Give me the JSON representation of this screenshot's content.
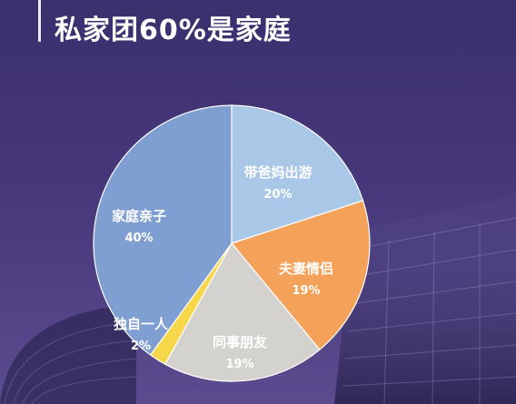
{
  "title": "私家团60%是家庭",
  "chart_data": {
    "type": "pie",
    "title": "私家团60%是家庭",
    "slices": [
      {
        "label": "带爸妈出游",
        "value": 20,
        "value_label": "20%",
        "color": "#a9c7e6"
      },
      {
        "label": "夫妻情侣",
        "value": 19,
        "value_label": "19%",
        "color": "#f4a25a"
      },
      {
        "label": "同事朋友",
        "value": 19,
        "value_label": "19%",
        "color": "#d4d2cf"
      },
      {
        "label": "独自一人",
        "value": 2,
        "value_label": "2%",
        "color": "#f6d74a"
      },
      {
        "label": "家庭亲子",
        "value": 40,
        "value_label": "40%",
        "color": "#7f9fd2"
      }
    ],
    "start_angle_deg": 0,
    "direction": "clockwise",
    "legend": "none"
  }
}
